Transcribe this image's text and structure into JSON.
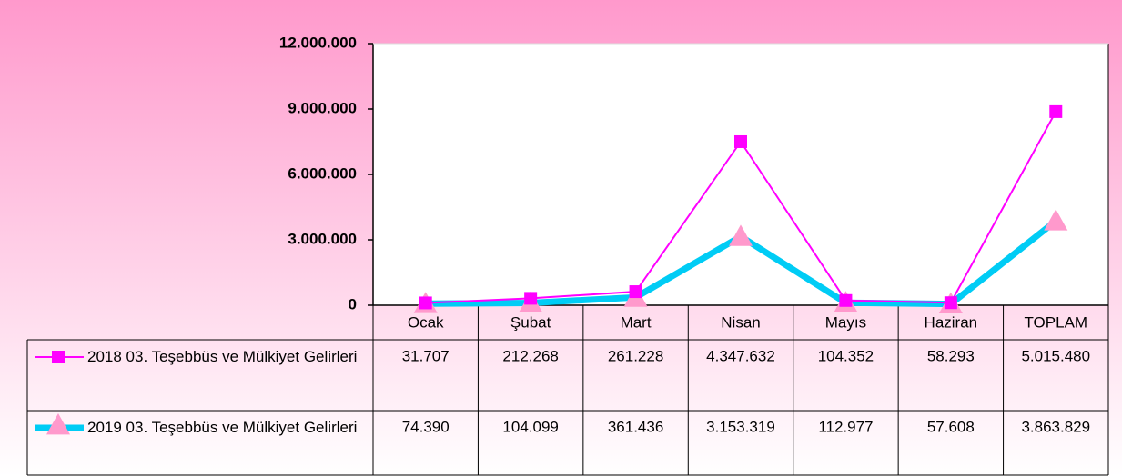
{
  "chart_data": {
    "type": "line",
    "stacked": true,
    "categories": [
      "Ocak",
      "Şubat",
      "Mart",
      "Nisan",
      "Mayıs",
      "Haziran",
      "TOPLAM"
    ],
    "series": [
      {
        "name": "2018 03. Teşebbüs ve Mülkiyet Gelirleri",
        "color": "#ff00ff",
        "marker_color": "#ff00ff",
        "marker": "square",
        "values": [
          31707,
          212268,
          261228,
          4347632,
          104352,
          58293,
          5015480
        ],
        "value_labels": [
          "31.707",
          "212.268",
          "261.228",
          "4.347.632",
          "104.352",
          "58.293",
          "5.015.480"
        ]
      },
      {
        "name": "2019 03. Teşebbüs ve Mülkiyet Gelirleri",
        "color": "#00ccf5",
        "marker_color": "#ff99cc",
        "marker": "triangle",
        "values": [
          74390,
          104099,
          361436,
          3153319,
          112977,
          57608,
          3863829
        ],
        "value_labels": [
          "74.390",
          "104.099",
          "361.436",
          "3.153.319",
          "112.977",
          "57.608",
          "3.863.829"
        ]
      }
    ],
    "ylim": [
      0,
      12000000
    ],
    "yticks": [
      0,
      {
        "value": 3000000,
        "label": "3.000.000"
      },
      {
        "value": 6000000,
        "label": "6.000.000"
      },
      {
        "value": 9000000,
        "label": "9.000.000"
      },
      {
        "value": 12000000,
        "label": "12.000.000"
      }
    ],
    "grid": false
  }
}
